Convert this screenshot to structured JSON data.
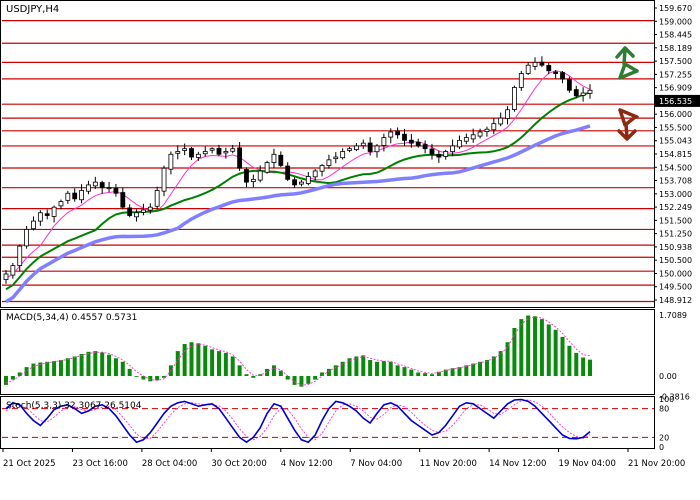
{
  "chart_data": [
    {
      "type": "candlestick",
      "symbol_label": "USDJPY,H4",
      "y_axis_labels": [
        "159.670",
        "159.000",
        "158.445",
        "158.189",
        "157.500",
        "157.255",
        "156.909",
        "156.535",
        "156.000",
        "155.500",
        "155.043",
        "154.815",
        "154.500",
        "153.708",
        "153.000",
        "152.249",
        "151.500",
        "151.250",
        "150.938",
        "150.500",
        "150.000",
        "149.500",
        "148.912"
      ],
      "price_levels": [
        159.0,
        158.189,
        157.5,
        156.909,
        156.0,
        155.5,
        155.043,
        154.5,
        153.708,
        153.0,
        152.249,
        151.5,
        150.938,
        150.5,
        150.0,
        149.5,
        148.912
      ],
      "level_line_color": "#cc0000",
      "ylim": [
        148.75,
        159.67
      ],
      "current_price": "156.535",
      "current_price_value": 156.535,
      "x_tick_labels": [
        "21 Oct 2025",
        "23 Oct 16:00",
        "28 Oct 04:00",
        "30 Oct 20:00",
        "4 Nov 12:00",
        "7 Nov 04:00",
        "11 Nov 20:00",
        "14 Nov 12:00",
        "19 Nov 04:00",
        "21 Nov 20:00"
      ],
      "close_series": [
        149.9,
        150.2,
        150.9,
        151.5,
        151.8,
        152.1,
        152.0,
        152.3,
        152.5,
        152.8,
        152.6,
        152.9,
        153.1,
        153.2,
        153.0,
        153.0,
        152.8,
        152.3,
        152.0,
        152.1,
        152.2,
        152.3,
        152.9,
        153.7,
        154.2,
        154.3,
        154.4,
        154.1,
        154.2,
        154.3,
        154.4,
        154.2,
        154.3,
        154.4,
        153.7,
        153.2,
        153.3,
        153.6,
        153.9,
        154.2,
        153.8,
        153.3,
        153.1,
        153.2,
        153.4,
        153.6,
        153.8,
        154.0,
        154.1,
        154.3,
        154.4,
        154.5,
        154.6,
        154.3,
        154.5,
        154.8,
        155.0,
        154.9,
        154.7,
        154.6,
        154.5,
        154.4,
        154.2,
        154.1,
        154.3,
        154.5,
        154.7,
        154.8,
        154.9,
        155.0,
        155.1,
        155.3,
        155.5,
        155.8,
        156.6,
        157.1,
        157.4,
        157.5,
        157.4,
        157.2,
        157.1,
        156.9,
        156.5,
        156.3,
        156.4,
        156.5
      ],
      "indicators": [
        {
          "name": "MA fast",
          "color": "#ff33cc"
        },
        {
          "name": "MA medium",
          "color": "#008000"
        },
        {
          "name": "MA slow",
          "color": "#8080ff"
        }
      ],
      "signals": [
        {
          "direction": "up",
          "color": "#2e7d32"
        },
        {
          "direction": "down",
          "color": "#8b2a12"
        }
      ]
    },
    {
      "type": "bar",
      "title": "MACD(5,34,4) 0.4557 0.5731",
      "y_axis_labels": [
        "1.7089",
        "0.00",
        "-0.3816"
      ],
      "ylim": [
        -0.45,
        1.8
      ],
      "bar_color": "#0a8a0a",
      "signal_color": "#ff33cc",
      "values": [
        -0.25,
        -0.1,
        0.1,
        0.25,
        0.35,
        0.38,
        0.4,
        0.42,
        0.45,
        0.5,
        0.55,
        0.62,
        0.68,
        0.7,
        0.66,
        0.6,
        0.5,
        0.4,
        0.2,
        0.0,
        -0.1,
        -0.15,
        -0.12,
        -0.05,
        0.3,
        0.7,
        0.9,
        0.95,
        0.92,
        0.85,
        0.75,
        0.7,
        0.65,
        0.55,
        0.3,
        0.05,
        -0.05,
        0.05,
        0.2,
        0.3,
        0.15,
        -0.1,
        -0.25,
        -0.3,
        -0.22,
        -0.1,
        0.1,
        0.2,
        0.3,
        0.4,
        0.5,
        0.55,
        0.58,
        0.45,
        0.4,
        0.42,
        0.4,
        0.3,
        0.25,
        0.18,
        0.1,
        0.08,
        0.05,
        0.12,
        0.18,
        0.22,
        0.25,
        0.3,
        0.35,
        0.4,
        0.45,
        0.55,
        0.7,
        0.95,
        1.35,
        1.6,
        1.7,
        1.68,
        1.6,
        1.45,
        1.3,
        1.1,
        0.85,
        0.65,
        0.52,
        0.46
      ],
      "signal": [
        -0.2,
        -0.12,
        0.0,
        0.15,
        0.27,
        0.33,
        0.37,
        0.4,
        0.43,
        0.47,
        0.52,
        0.58,
        0.63,
        0.67,
        0.67,
        0.63,
        0.55,
        0.45,
        0.3,
        0.12,
        0.0,
        -0.1,
        -0.12,
        -0.08,
        0.15,
        0.45,
        0.7,
        0.85,
        0.9,
        0.87,
        0.8,
        0.73,
        0.68,
        0.6,
        0.42,
        0.18,
        0.02,
        0.02,
        0.12,
        0.22,
        0.18,
        0.0,
        -0.16,
        -0.26,
        -0.24,
        -0.15,
        0.0,
        0.14,
        0.24,
        0.33,
        0.43,
        0.5,
        0.55,
        0.5,
        0.45,
        0.42,
        0.41,
        0.34,
        0.28,
        0.21,
        0.14,
        0.1,
        0.07,
        0.1,
        0.15,
        0.2,
        0.23,
        0.27,
        0.32,
        0.37,
        0.42,
        0.5,
        0.62,
        0.82,
        1.15,
        1.45,
        1.62,
        1.66,
        1.63,
        1.52,
        1.38,
        1.2,
        0.97,
        0.76,
        0.6,
        0.57
      ]
    },
    {
      "type": "line",
      "title": "Stoch(5,3,3) 32.3067 26.5104",
      "y_axis_labels": [
        "100",
        "80",
        "20",
        "0"
      ],
      "ylim": [
        0,
        100
      ],
      "levels": [
        80,
        20
      ],
      "k_color": "#0000cc",
      "d_color": "#ff33cc",
      "series": [
        {
          "values": [
            80,
            92,
            88,
            70,
            55,
            45,
            60,
            78,
            85,
            88,
            80,
            70,
            75,
            85,
            88,
            80,
            65,
            45,
            25,
            10,
            15,
            30,
            50,
            70,
            85,
            92,
            95,
            90,
            85,
            88,
            90,
            80,
            60,
            40,
            20,
            10,
            20,
            40,
            70,
            90,
            85,
            60,
            35,
            15,
            10,
            25,
            55,
            80,
            95,
            92,
            85,
            75,
            60,
            50,
            70,
            88,
            92,
            85,
            70,
            55,
            45,
            35,
            25,
            30,
            45,
            65,
            85,
            92,
            90,
            80,
            70,
            60,
            75,
            90,
            98,
            99,
            95,
            85,
            70,
            55,
            40,
            25,
            18,
            17,
            20,
            32
          ]
        },
        {
          "values": [
            75,
            85,
            88,
            82,
            68,
            55,
            52,
            62,
            75,
            84,
            84,
            78,
            75,
            78,
            83,
            85,
            78,
            62,
            45,
            27,
            17,
            18,
            32,
            50,
            68,
            82,
            90,
            92,
            90,
            88,
            88,
            86,
            75,
            58,
            38,
            22,
            15,
            22,
            40,
            65,
            80,
            78,
            60,
            38,
            20,
            15,
            28,
            52,
            75,
            88,
            90,
            85,
            75,
            62,
            58,
            68,
            82,
            88,
            84,
            72,
            58,
            45,
            35,
            30,
            33,
            45,
            62,
            80,
            88,
            88,
            80,
            70,
            68,
            78,
            88,
            96,
            98,
            94,
            85,
            72,
            56,
            42,
            30,
            22,
            18,
            26
          ]
        }
      ]
    }
  ]
}
